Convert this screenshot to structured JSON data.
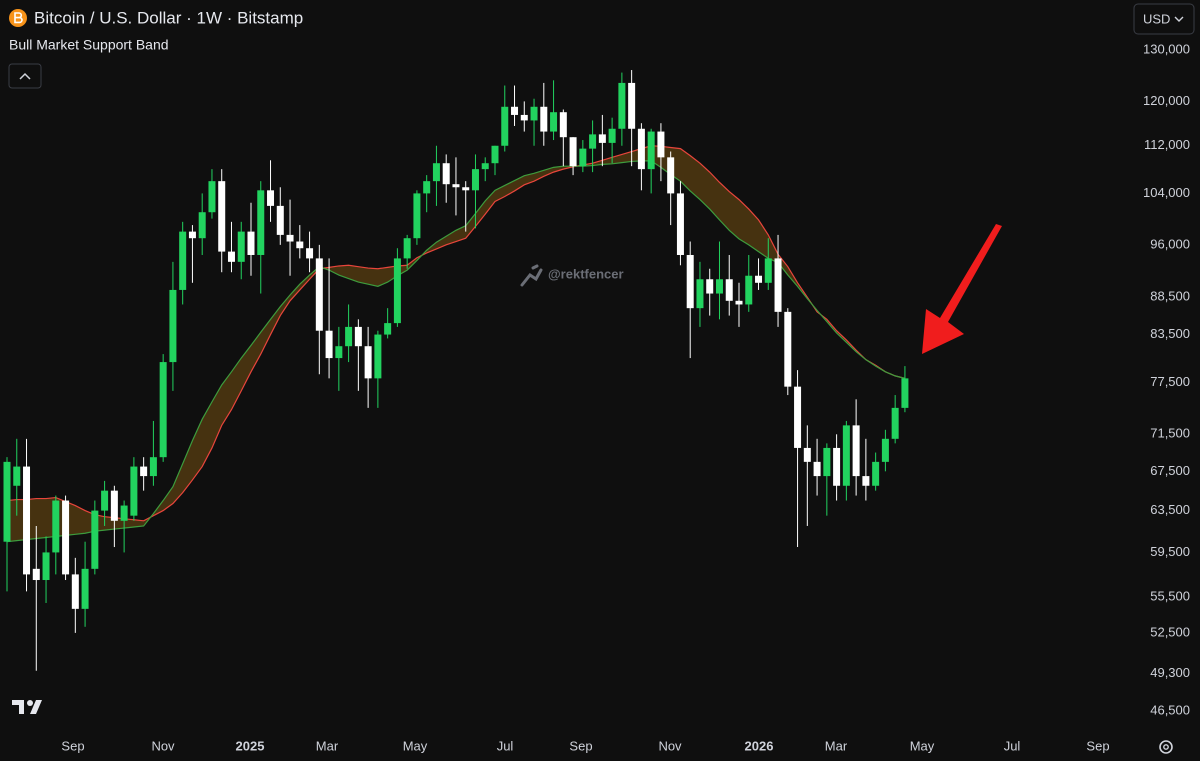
{
  "chart_data": {
    "type": "candlestick",
    "title": "Bitcoin / U.S. Dollar · 1W · Bitstamp",
    "indicator": "Bull Market Support Band",
    "currency": "USD",
    "watermark": "@rektfencer",
    "log_scale": true,
    "grid": false,
    "up_color": "#22d35f",
    "down_color": "#ffffff",
    "x_tick_labels": [
      "Sep",
      "Nov",
      "2025",
      "Mar",
      "May",
      "Jul",
      "Sep",
      "Nov",
      "2026",
      "Mar",
      "May",
      "Jul",
      "Sep"
    ],
    "ylim": [
      45140,
      140500
    ],
    "yticks": [
      {
        "value": 130000,
        "label": "130,000"
      },
      {
        "value": 120000,
        "label": "120,000"
      },
      {
        "value": 112000,
        "label": "112,000"
      },
      {
        "value": 104000,
        "label": "104,000"
      },
      {
        "value": 96000,
        "label": "96,000"
      },
      {
        "value": 88500,
        "label": "88,500"
      },
      {
        "value": 83500,
        "label": "83,500"
      },
      {
        "value": 77500,
        "label": "77,500"
      },
      {
        "value": 71500,
        "label": "71,500"
      },
      {
        "value": 67500,
        "label": "67,500"
      },
      {
        "value": 63500,
        "label": "63,500"
      },
      {
        "value": 59500,
        "label": "59,500"
      },
      {
        "value": 55500,
        "label": "55,500"
      },
      {
        "value": 52500,
        "label": "52,500"
      },
      {
        "value": 49300,
        "label": "49,300"
      },
      {
        "value": 46500,
        "label": "46,500"
      }
    ],
    "candles": {
      "open": [
        60500,
        66000,
        68000,
        58000,
        57000,
        59500,
        64500,
        57500,
        54500,
        58000,
        63500,
        65500,
        62500,
        63000,
        68000,
        67000,
        69000,
        80000,
        89500,
        98000,
        97000,
        101000,
        106000,
        95000,
        93500,
        98000,
        94500,
        104500,
        102000,
        97500,
        96500,
        95500,
        94000,
        84000,
        80500,
        82000,
        84500,
        82000,
        78000,
        83500,
        85000,
        94000,
        97000,
        104000,
        106000,
        109000,
        105500,
        105000,
        104500,
        108000,
        109000,
        112000,
        119000,
        117500,
        116500,
        119000,
        114500,
        118000,
        113500,
        108500,
        111500,
        114000,
        112500,
        115000,
        123500,
        115000,
        108000,
        114500,
        110000,
        104000,
        94500,
        87000,
        91000,
        89000,
        91000,
        88000,
        87500,
        91500,
        90500,
        94000,
        86500,
        77000,
        70000,
        68500,
        67000,
        70000,
        66000,
        72500,
        67000,
        66000,
        68500,
        71000,
        74500
      ],
      "high": [
        69000,
        71000,
        71000,
        62000,
        61000,
        65000,
        65000,
        59000,
        60500,
        64500,
        66500,
        66000,
        64500,
        69000,
        69000,
        73000,
        81000,
        93500,
        99500,
        99000,
        104000,
        108000,
        108000,
        99500,
        99500,
        102500,
        106000,
        109500,
        105000,
        103000,
        99000,
        98000,
        96000,
        94000,
        84500,
        87500,
        85500,
        84500,
        84000,
        87000,
        95500,
        97500,
        104500,
        107000,
        112000,
        110500,
        110000,
        106000,
        110500,
        110000,
        112000,
        123000,
        123000,
        120000,
        120500,
        123500,
        124000,
        118500,
        113500,
        113000,
        116500,
        117500,
        117000,
        125500,
        126000,
        116000,
        115000,
        116000,
        111000,
        106000,
        96500,
        93500,
        92500,
        96500,
        94500,
        90500,
        94500,
        94000,
        97000,
        97500,
        87000,
        79000,
        72500,
        71000,
        70500,
        71500,
        73000,
        75500,
        71000,
        69500,
        72000,
        76000,
        79500
      ],
      "low": [
        56000,
        63000,
        56000,
        49500,
        55000,
        57500,
        57000,
        52500,
        53000,
        57500,
        62000,
        60000,
        59500,
        62500,
        65500,
        66000,
        68500,
        76500,
        87500,
        90500,
        94500,
        100000,
        92000,
        92000,
        91000,
        91500,
        89000,
        99500,
        96000,
        91500,
        94000,
        92000,
        78500,
        78000,
        76500,
        80000,
        76500,
        74500,
        74500,
        83000,
        84500,
        92500,
        96000,
        101000,
        102000,
        102500,
        100500,
        98000,
        98500,
        106000,
        107000,
        111000,
        115500,
        114500,
        112000,
        112000,
        113000,
        108500,
        107000,
        107500,
        107500,
        108500,
        109000,
        112000,
        108500,
        104500,
        104000,
        106000,
        99000,
        93000,
        80500,
        84500,
        86000,
        85500,
        86000,
        84500,
        86500,
        89500,
        89500,
        84500,
        76000,
        60000,
        62000,
        65000,
        63000,
        64500,
        64500,
        65000,
        64500,
        65500,
        67500,
        70500,
        74000
      ],
      "close": [
        68500,
        68000,
        57500,
        57000,
        59500,
        64500,
        57500,
        54500,
        58000,
        63500,
        65500,
        62500,
        64000,
        68000,
        67000,
        69000,
        80000,
        89500,
        98000,
        97000,
        101000,
        106000,
        95000,
        93500,
        98000,
        94500,
        104500,
        102000,
        97500,
        96500,
        95500,
        94000,
        84000,
        80500,
        82000,
        84500,
        82000,
        78000,
        83500,
        85000,
        94000,
        97000,
        104000,
        106000,
        109000,
        105500,
        105000,
        104500,
        108000,
        109000,
        112000,
        119000,
        117500,
        116500,
        119000,
        114500,
        118000,
        113500,
        108500,
        111500,
        114000,
        112500,
        115000,
        123500,
        115000,
        108000,
        114500,
        110000,
        104000,
        94500,
        87000,
        91000,
        89000,
        91000,
        88000,
        87500,
        91500,
        90500,
        94000,
        86500,
        77000,
        70000,
        68500,
        67000,
        70000,
        66000,
        72500,
        67000,
        66000,
        68500,
        71000,
        74500,
        78000
      ]
    },
    "band": [
      {
        "color": "#e8453c",
        "values": [
          64500,
          64600,
          64600,
          64700,
          64700,
          64800,
          64400,
          64000,
          63500,
          63100,
          62900,
          62800,
          62700,
          62600,
          62500,
          63000,
          63500,
          64200,
          65300,
          66600,
          68000,
          70000,
          72500,
          74300,
          76500,
          78800,
          81000,
          83500,
          86000,
          88000,
          89500,
          91000,
          92500,
          92700,
          92900,
          93000,
          92800,
          92600,
          92500,
          92700,
          92900,
          93000,
          94100,
          94800,
          95400,
          96000,
          96500,
          97000,
          98800,
          100700,
          102700,
          103500,
          104400,
          105400,
          106000,
          106800,
          107500,
          108000,
          108400,
          108700,
          109000,
          109500,
          110000,
          110500,
          111000,
          111500,
          112000,
          111900,
          111700,
          111500,
          110300,
          109000,
          107500,
          105800,
          104300,
          103000,
          101500,
          99800,
          97500,
          94600,
          92800,
          90500,
          88500,
          86500,
          85500,
          84000,
          82800,
          81500,
          80300,
          79600,
          78800,
          78300,
          78000
        ]
      },
      {
        "color": "#3d9c3d",
        "values": [
          60500,
          60600,
          60700,
          60800,
          60900,
          61000,
          61100,
          61200,
          61300,
          61500,
          61600,
          61700,
          61800,
          61900,
          62000,
          63200,
          64500,
          65900,
          68300,
          70800,
          73200,
          75200,
          77200,
          78800,
          80500,
          82100,
          83800,
          85500,
          87200,
          88800,
          90300,
          91600,
          92800,
          92300,
          91600,
          91100,
          90600,
          90300,
          90000,
          90600,
          91500,
          92300,
          93700,
          95200,
          96400,
          97300,
          98200,
          98900,
          100800,
          102800,
          104500,
          105300,
          106100,
          106900,
          107300,
          107800,
          108300,
          108500,
          108500,
          108500,
          108600,
          108800,
          108900,
          109100,
          109300,
          109400,
          109400,
          108300,
          107100,
          106000,
          104400,
          103000,
          101500,
          99800,
          98200,
          96900,
          96000,
          95000,
          94000,
          93400,
          91600,
          90000,
          88300,
          86700,
          85200,
          83700,
          82500,
          81300,
          80300,
          79500,
          78800,
          78300,
          78000
        ]
      }
    ]
  }
}
